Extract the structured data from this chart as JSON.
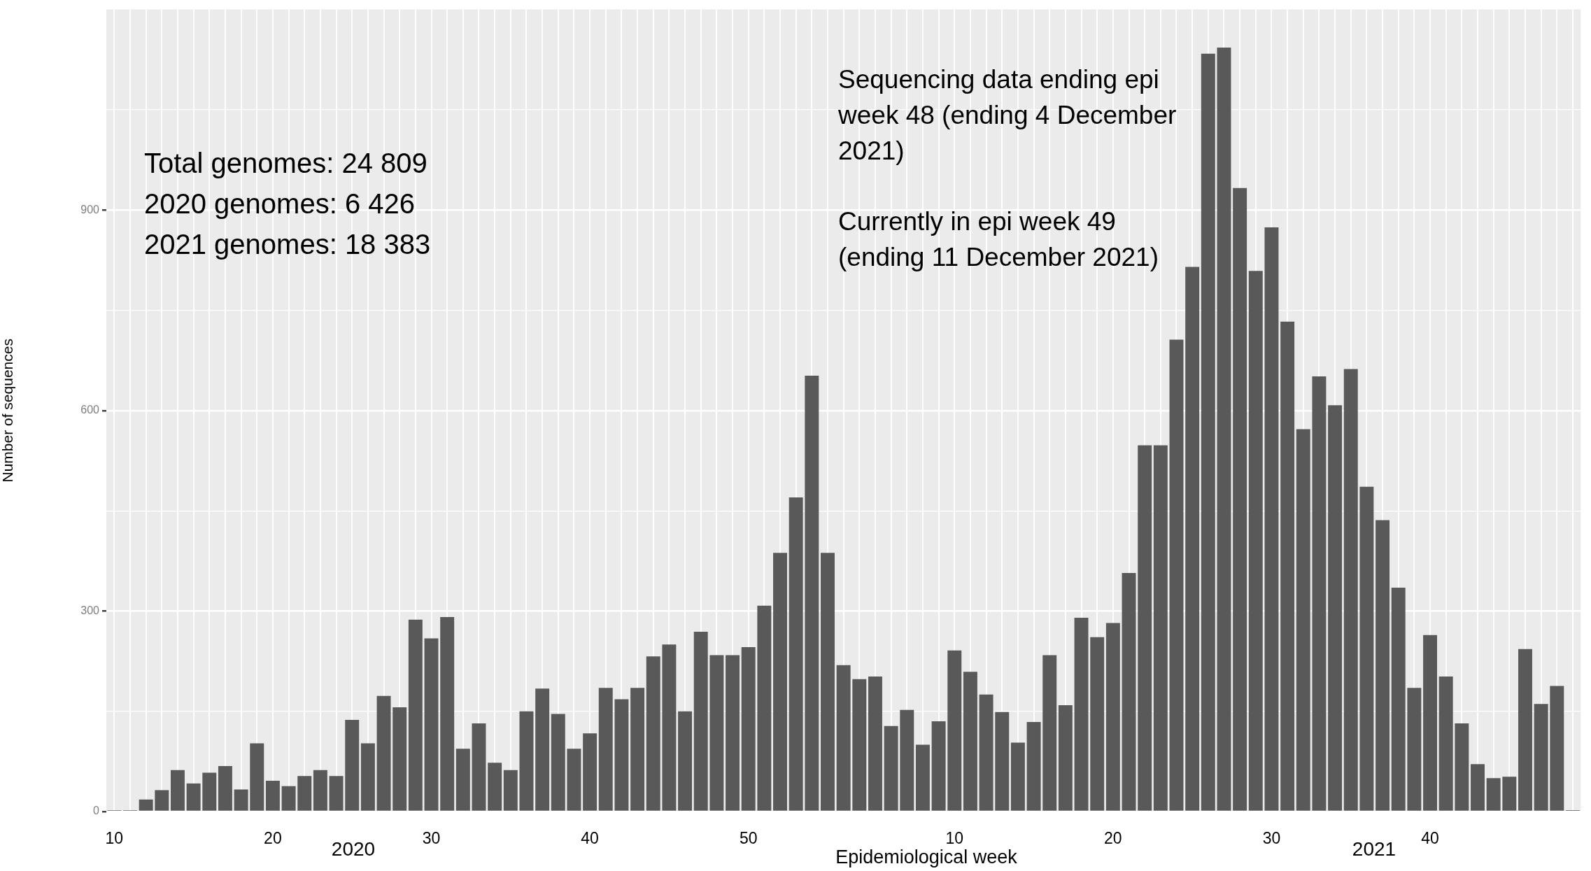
{
  "chart_data": {
    "type": "bar",
    "xlabel": "Epidemiological week",
    "ylabel": "Number of sequences",
    "categories": [
      "10",
      null,
      null,
      null,
      null,
      null,
      null,
      null,
      null,
      null,
      "20",
      null,
      null,
      null,
      null,
      null,
      null,
      null,
      null,
      null,
      "30",
      null,
      null,
      null,
      null,
      null,
      null,
      null,
      null,
      null,
      "40",
      null,
      null,
      null,
      null,
      null,
      null,
      null,
      null,
      null,
      "50",
      null,
      null,
      null,
      null,
      null,
      null,
      null,
      null,
      null,
      null,
      null,
      null,
      "10",
      null,
      null,
      null,
      null,
      null,
      null,
      null,
      null,
      null,
      "20",
      null,
      null,
      null,
      null,
      null,
      null,
      null,
      null,
      null,
      "30",
      null,
      null,
      null,
      null,
      null,
      null,
      null,
      null,
      null,
      "40",
      null,
      null,
      null,
      null,
      null,
      null,
      null,
      null,
      null
    ],
    "values": [
      2,
      2,
      18,
      32,
      62,
      42,
      58,
      68,
      33,
      102,
      46,
      38,
      53,
      62,
      53,
      137,
      102,
      173,
      156,
      287,
      259,
      291,
      94,
      132,
      73,
      62,
      150,
      184,
      146,
      94,
      117,
      185,
      168,
      185,
      232,
      250,
      150,
      269,
      234,
      234,
      246,
      308,
      387,
      470,
      652,
      387,
      219,
      198,
      202,
      128,
      152,
      100,
      135,
      241,
      209,
      175,
      149,
      103,
      134,
      234,
      159,
      290,
      261,
      282,
      357,
      548,
      548,
      706,
      815,
      1134,
      1143,
      933,
      809,
      874,
      733,
      572,
      651,
      608,
      662,
      486,
      436,
      335,
      185,
      264,
      202,
      132,
      71,
      50,
      52,
      243,
      161,
      188,
      2
    ],
    "color": "#595959",
    "ylim": [
      0,
      1200
    ],
    "yticks": [
      0,
      {
        "value": 150,
        "label": null
      },
      300,
      {
        "value": 450,
        "label": null
      },
      600,
      {
        "value": 750,
        "label": null
      },
      900,
      {
        "value": 1050,
        "label": null
      }
    ],
    "grid": true,
    "annotations": [
      "Total genomes: 24 809\n2020 genomes: 6 426\n2021 genomes: 18 383",
      "Sequencing data ending epi\nweek 48 (ending 4 December\n2021)",
      "Currently in epi week 49\n(ending 11 December 2021)",
      "2020",
      "2021"
    ]
  }
}
